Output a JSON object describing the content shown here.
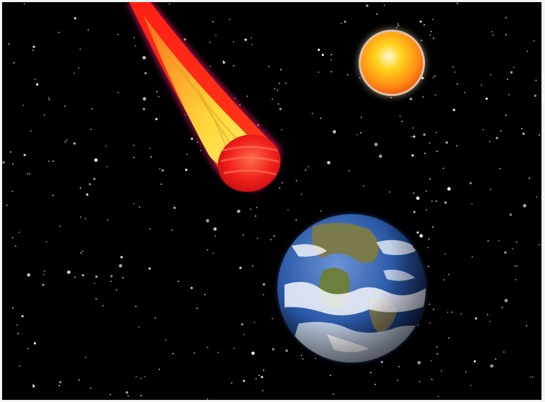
{
  "scene": {
    "background_color": "#000000",
    "star_color": "#ffffff",
    "sun_colors": [
      "#fffbd0",
      "#ffd21c",
      "#ff8c12"
    ],
    "comet_colors": [
      "#ff1e14",
      "#ffe23c",
      "#ff4a24"
    ],
    "earth_colors": [
      "#2b5aa8",
      "#f4f6fb",
      "#6b7f3f"
    ]
  }
}
